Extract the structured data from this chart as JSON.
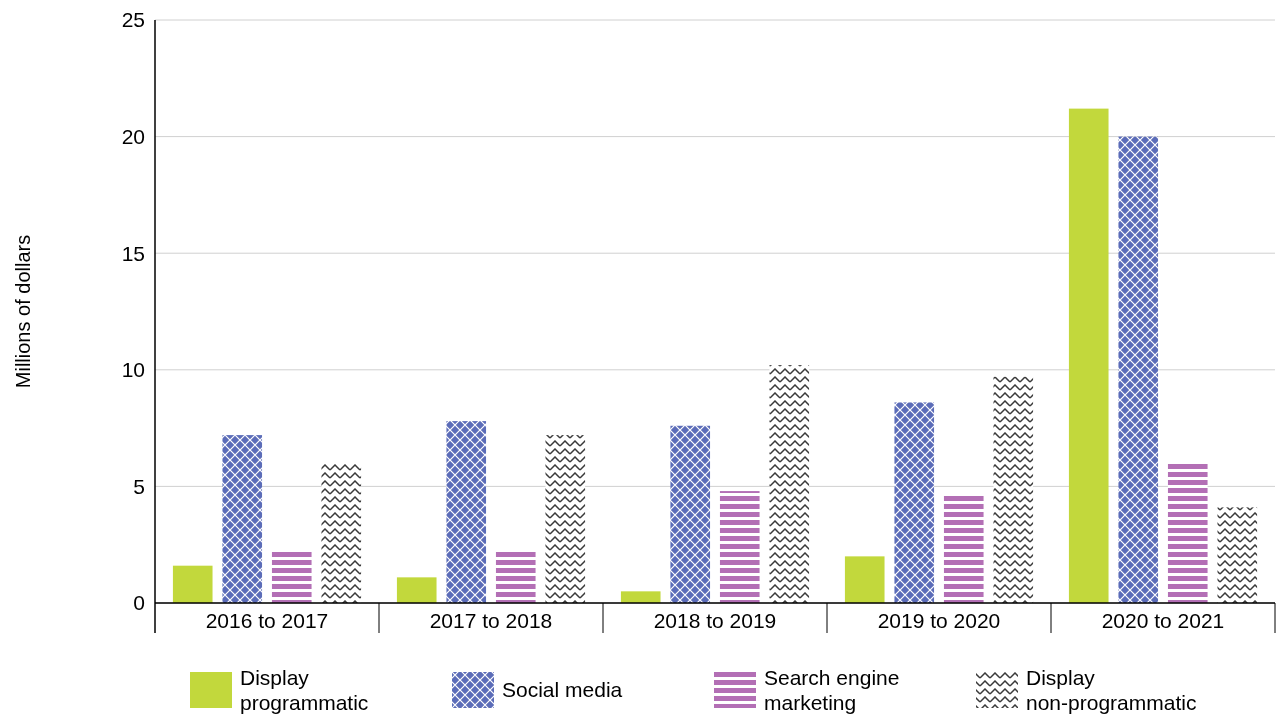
{
  "chart_data": {
    "type": "bar",
    "ylabel": "Millions of dollars",
    "categories": [
      "2016 to 2017",
      "2017 to 2018",
      "2018 to 2019",
      "2019 to 2020",
      "2020 to 2021"
    ],
    "series": [
      {
        "name": "Display programmatic",
        "color": "#c2d83c",
        "values": [
          1.6,
          1.1,
          0.5,
          2.0,
          21.2
        ]
      },
      {
        "name": "Social media",
        "color": "#5b6cb8",
        "values": [
          7.2,
          7.8,
          7.6,
          8.6,
          20.0
        ]
      },
      {
        "name": "Search engine marketing",
        "color": "#b36fb5",
        "values": [
          2.2,
          2.3,
          4.8,
          4.6,
          6.0
        ]
      },
      {
        "name": "Display non-programmatic",
        "color": "#3a3a3a",
        "values": [
          6.0,
          7.2,
          10.2,
          9.7,
          4.1
        ]
      }
    ],
    "ylim": [
      0,
      25
    ],
    "yticks": [
      0,
      5,
      10,
      15,
      20,
      25
    ],
    "grid": "y",
    "legend": "bottom"
  }
}
